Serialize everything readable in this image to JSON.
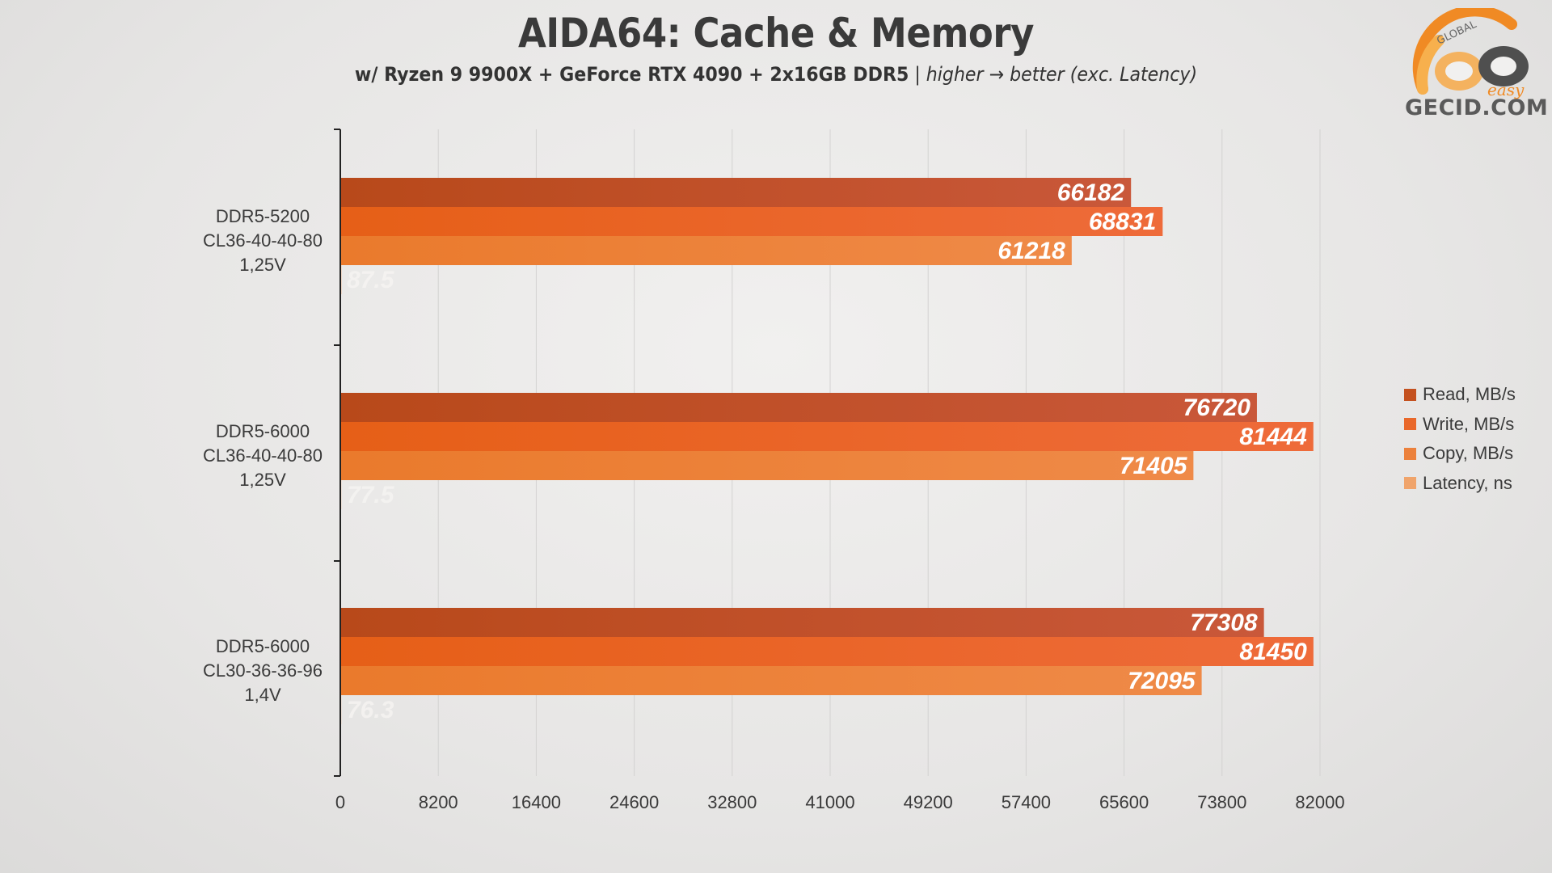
{
  "title": "AIDA64: Cache & Memory",
  "subtitle": {
    "bold": "w/ Ryzen 9 9900X + GeForce RTX 4090 + 2x16GB DDR5",
    "sep": " | ",
    "italic": "higher → better (exc. Latency)"
  },
  "logo": {
    "text": "GECID.COM",
    "ring_text": "GLOBAL",
    "small_text": "easy",
    "icon": "gecid-logo"
  },
  "colors": {
    "read": "#c4511f",
    "write": "#e9682a",
    "copy": "#ec813c",
    "latency": "#f0a46b"
  },
  "chart_data": {
    "type": "bar",
    "orientation": "horizontal",
    "categories": [
      [
        "DDR5-5200",
        "CL36-40-40-80",
        "1,25V"
      ],
      [
        "DDR5-6000",
        "CL36-40-40-80",
        "1,25V"
      ],
      [
        "DDR5-6000",
        "CL30-36-36-96",
        "1,4V"
      ]
    ],
    "series": [
      {
        "name": "Read, MB/s",
        "key": "read",
        "values": [
          66182,
          76720,
          77308
        ]
      },
      {
        "name": "Write, MB/s",
        "key": "write",
        "values": [
          68831,
          81444,
          81450
        ]
      },
      {
        "name": "Copy, MB/s",
        "key": "copy",
        "values": [
          61218,
          71405,
          72095
        ]
      },
      {
        "name": "Latency, ns",
        "key": "latency",
        "values": [
          87.5,
          77.5,
          76.3
        ]
      }
    ],
    "xlim": [
      0,
      82000
    ],
    "xticks": [
      0,
      8200,
      16400,
      24600,
      32800,
      41000,
      49200,
      57400,
      65600,
      73800,
      82000
    ],
    "grid": true,
    "legend": "right"
  }
}
